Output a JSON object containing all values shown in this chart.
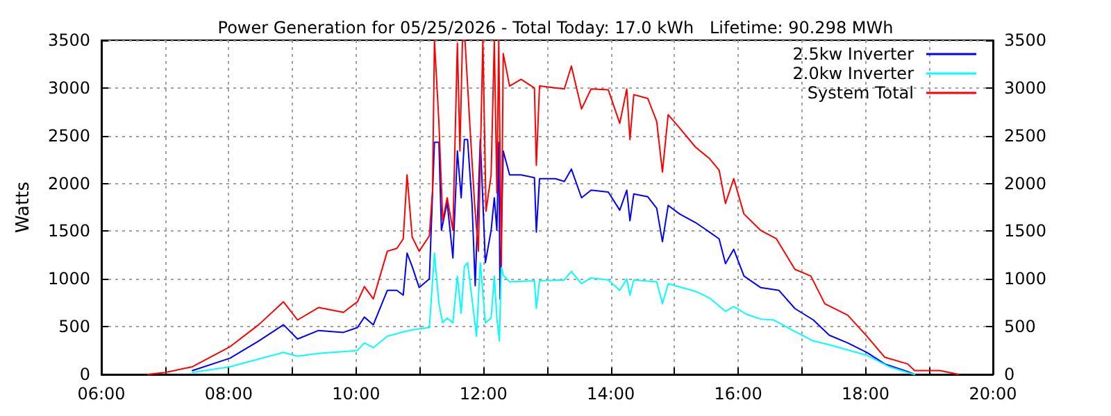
{
  "chart_data": {
    "type": "line",
    "title": "Power Generation for 05/25/2026 - Total Today: 17.0 kWh   Lifetime: 90.298 MWh",
    "ylabel": "Watts",
    "xlim": [
      6,
      20
    ],
    "xticks": [
      {
        "value": 6,
        "label": "06:00"
      },
      {
        "value": 7,
        "label": null
      },
      {
        "value": 8,
        "label": "08:00"
      },
      {
        "value": 9,
        "label": null
      },
      {
        "value": 10,
        "label": "10:00"
      },
      {
        "value": 11,
        "label": null
      },
      {
        "value": 12,
        "label": "12:00"
      },
      {
        "value": 13,
        "label": null
      },
      {
        "value": 14,
        "label": "14:00"
      },
      {
        "value": 15,
        "label": null
      },
      {
        "value": 16,
        "label": "16:00"
      },
      {
        "value": 17,
        "label": null
      },
      {
        "value": 18,
        "label": "18:00"
      },
      {
        "value": 19,
        "label": null
      },
      {
        "value": 20,
        "label": "20:00"
      }
    ],
    "ylim": [
      0,
      3500
    ],
    "yticks": [
      0,
      500,
      1000,
      1500,
      2000,
      2500,
      3000,
      3500
    ],
    "y2lim": [
      0,
      3500
    ],
    "y2ticks": [
      0,
      500,
      1000,
      1500,
      2000,
      2500,
      3000,
      3500
    ],
    "grid": true,
    "legend": "top right",
    "marker": "none",
    "line_style": "solid",
    "series": [
      {
        "name": "2.5kw Inverter",
        "color": "#0000ff",
        "x": [
          7.43,
          8.02,
          8.47,
          8.86,
          9.08,
          9.41,
          9.8,
          10.02,
          10.13,
          10.27,
          10.49,
          10.64,
          10.74,
          10.8,
          10.88,
          10.99,
          11.15,
          11.23,
          11.3,
          11.34,
          11.43,
          11.52,
          11.59,
          11.65,
          11.7,
          11.75,
          11.82,
          11.87,
          11.95,
          12.03,
          12.12,
          12.17,
          12.21,
          12.24,
          12.26,
          12.31,
          12.41,
          12.59,
          12.8,
          12.83,
          12.88,
          13.13,
          13.27,
          13.38,
          13.54,
          13.69,
          13.96,
          14.14,
          14.25,
          14.3,
          14.36,
          14.58,
          14.72,
          14.81,
          14.9,
          15.08,
          15.33,
          15.55,
          15.7,
          15.8,
          15.93,
          16.09,
          16.35,
          16.64,
          16.89,
          17.18,
          17.43,
          17.72,
          18.02,
          18.3,
          18.66,
          18.77
        ],
        "values": [
          40,
          170,
          350,
          520,
          370,
          460,
          440,
          490,
          600,
          520,
          880,
          880,
          830,
          1270,
          1130,
          910,
          1000,
          2430,
          2430,
          1510,
          1800,
          1220,
          2340,
          1850,
          2460,
          2460,
          1790,
          930,
          2460,
          1170,
          1510,
          1850,
          1510,
          2430,
          790,
          2340,
          2090,
          2090,
          2060,
          1490,
          2050,
          2050,
          2020,
          2150,
          1850,
          1930,
          1910,
          1720,
          1930,
          1610,
          1890,
          1860,
          1740,
          1390,
          1770,
          1680,
          1590,
          1490,
          1420,
          1160,
          1310,
          1030,
          910,
          880,
          690,
          570,
          410,
          330,
          230,
          110,
          30,
          0
        ]
      },
      {
        "name": "2.0kw Inverter",
        "color": "#00ffff",
        "x": [
          7.43,
          8.02,
          8.86,
          9.08,
          9.41,
          10.02,
          10.13,
          10.27,
          10.49,
          10.77,
          10.91,
          11.15,
          11.23,
          11.3,
          11.36,
          11.43,
          11.52,
          11.59,
          11.65,
          11.7,
          11.75,
          11.82,
          11.89,
          11.95,
          12.03,
          12.12,
          12.17,
          12.21,
          12.25,
          12.28,
          12.31,
          12.41,
          12.8,
          12.83,
          12.88,
          13.27,
          13.38,
          13.54,
          13.69,
          13.96,
          14.14,
          14.25,
          14.3,
          14.36,
          14.72,
          14.81,
          14.9,
          15.33,
          15.55,
          15.8,
          15.93,
          16.13,
          16.35,
          16.56,
          16.89,
          17.18,
          17.43,
          18.02,
          18.37,
          18.66,
          18.77
        ],
        "values": [
          20,
          80,
          230,
          190,
          220,
          250,
          330,
          280,
          400,
          450,
          470,
          490,
          1270,
          740,
          540,
          590,
          540,
          1030,
          640,
          1130,
          1170,
          790,
          400,
          1170,
          540,
          590,
          1030,
          590,
          350,
          1130,
          1040,
          970,
          980,
          690,
          980,
          990,
          1080,
          950,
          1010,
          990,
          880,
          1000,
          830,
          990,
          970,
          740,
          950,
          870,
          800,
          660,
          710,
          630,
          580,
          570,
          450,
          350,
          310,
          200,
          80,
          20,
          0
        ]
      },
      {
        "name": "System Total",
        "color": "#ff0000",
        "x": [
          6.73,
          7.0,
          7.43,
          8.02,
          8.47,
          8.86,
          9.08,
          9.41,
          9.8,
          10.02,
          10.13,
          10.27,
          10.49,
          10.64,
          10.74,
          10.8,
          10.88,
          10.99,
          11.15,
          11.2,
          11.23,
          11.3,
          11.36,
          11.43,
          11.52,
          11.59,
          11.63,
          11.67,
          11.71,
          11.79,
          11.86,
          11.92,
          11.99,
          12.04,
          12.12,
          12.17,
          12.21,
          12.24,
          12.28,
          12.31,
          12.41,
          12.59,
          12.8,
          12.83,
          12.88,
          13.13,
          13.27,
          13.38,
          13.54,
          13.69,
          13.96,
          14.14,
          14.25,
          14.3,
          14.36,
          14.58,
          14.72,
          14.81,
          14.9,
          15.08,
          15.33,
          15.55,
          15.7,
          15.8,
          15.93,
          16.09,
          16.35,
          16.6,
          16.89,
          17.14,
          17.36,
          17.72,
          18.02,
          18.3,
          18.66,
          18.77,
          19.17,
          19.46
        ],
        "values": [
          0,
          20,
          80,
          290,
          520,
          760,
          570,
          700,
          650,
          760,
          920,
          790,
          1290,
          1320,
          1420,
          2090,
          1440,
          1290,
          1450,
          1930,
          3500,
          2640,
          1610,
          1850,
          1510,
          3470,
          2340,
          3500,
          3500,
          2570,
          1790,
          1290,
          3500,
          1710,
          2090,
          3500,
          1900,
          3500,
          1130,
          3360,
          3020,
          3090,
          3000,
          2190,
          3020,
          3000,
          2990,
          3230,
          2780,
          2990,
          2980,
          2630,
          2990,
          2460,
          2930,
          2890,
          2650,
          2120,
          2720,
          2580,
          2380,
          2260,
          2140,
          1790,
          2050,
          1680,
          1510,
          1420,
          1100,
          1030,
          740,
          620,
          400,
          180,
          110,
          40,
          40,
          0
        ]
      }
    ]
  }
}
